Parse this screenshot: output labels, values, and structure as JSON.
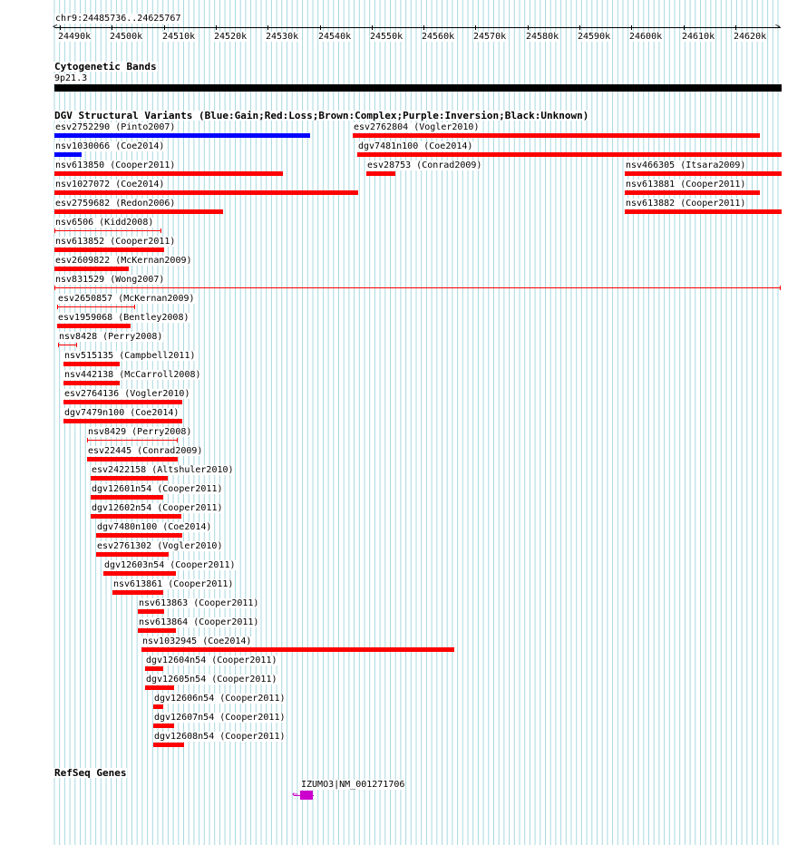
{
  "position": "chr9:24485736..24625767",
  "ruler": {
    "range_kb": [
      24485.736,
      24625.767
    ],
    "tick_labels": [
      "24490k",
      "24500k",
      "24510k",
      "24520k",
      "24530k",
      "24540k",
      "24550k",
      "24560k",
      "24570k",
      "24580k",
      "24590k",
      "24600k",
      "24610k",
      "24620k"
    ]
  },
  "cytoband": {
    "title": "Cytogenetic Bands",
    "band": "9p21.3"
  },
  "dgv": {
    "title": "DGV Structural Variants (Blue:Gain;Red:Loss;Brown:Complex;Purple:Inversion;Black:Unknown)",
    "colors": {
      "gain": "#0000ff",
      "loss": "#ff0000"
    },
    "variants": [
      {
        "label": "esv2752290 (Pinto2007)",
        "type": "gain",
        "style": "thick"
      },
      {
        "label": "esv2762804 (Vogler2010)",
        "type": "loss",
        "style": "thick"
      },
      {
        "label": "nsv1030066 (Coe2014)",
        "type": "gain",
        "style": "thick"
      },
      {
        "label": "dgv7481n100 (Coe2014)",
        "type": "loss",
        "style": "thick"
      },
      {
        "label": "nsv613850 (Cooper2011)",
        "type": "loss",
        "style": "thick"
      },
      {
        "label": "esv28753 (Conrad2009)",
        "type": "loss",
        "style": "thick"
      },
      {
        "label": "nsv466305 (Itsara2009)",
        "type": "loss",
        "style": "thick"
      },
      {
        "label": "nsv1027072 (Coe2014)",
        "type": "loss",
        "style": "thick"
      },
      {
        "label": "nsv613881 (Cooper2011)",
        "type": "loss",
        "style": "thick"
      },
      {
        "label": "esv2759682 (Redon2006)",
        "type": "loss",
        "style": "thick"
      },
      {
        "label": "nsv613882 (Cooper2011)",
        "type": "loss",
        "style": "thick"
      },
      {
        "label": "nsv6506 (Kidd2008)",
        "type": "loss",
        "style": "thin"
      },
      {
        "label": "nsv613852 (Cooper2011)",
        "type": "loss",
        "style": "thick"
      },
      {
        "label": "esv2609822 (McKernan2009)",
        "type": "loss",
        "style": "thick"
      },
      {
        "label": "nsv831529 (Wong2007)",
        "type": "loss",
        "style": "thin"
      },
      {
        "label": "esv2650857 (McKernan2009)",
        "type": "loss",
        "style": "thin"
      },
      {
        "label": "esv1959068 (Bentley2008)",
        "type": "loss",
        "style": "thick"
      },
      {
        "label": "nsv8428 (Perry2008)",
        "type": "loss",
        "style": "thin"
      },
      {
        "label": "nsv515135 (Campbell2011)",
        "type": "loss",
        "style": "thick"
      },
      {
        "label": "nsv442138 (McCarroll2008)",
        "type": "loss",
        "style": "thick"
      },
      {
        "label": "esv2764136 (Vogler2010)",
        "type": "loss",
        "style": "thick"
      },
      {
        "label": "dgv7479n100 (Coe2014)",
        "type": "loss",
        "style": "thick"
      },
      {
        "label": "nsv8429 (Perry2008)",
        "type": "loss",
        "style": "thin"
      },
      {
        "label": "esv22445 (Conrad2009)",
        "type": "loss",
        "style": "thick"
      },
      {
        "label": "esv2422158 (Altshuler2010)",
        "type": "loss",
        "style": "thick"
      },
      {
        "label": "dgv12601n54 (Cooper2011)",
        "type": "loss",
        "style": "thick"
      },
      {
        "label": "dgv12602n54 (Cooper2011)",
        "type": "loss",
        "style": "thick"
      },
      {
        "label": "dgv7480n100 (Coe2014)",
        "type": "loss",
        "style": "thick"
      },
      {
        "label": "esv2761302 (Vogler2010)",
        "type": "loss",
        "style": "thick"
      },
      {
        "label": "dgv12603n54 (Cooper2011)",
        "type": "loss",
        "style": "thick"
      },
      {
        "label": "nsv613861 (Cooper2011)",
        "type": "loss",
        "style": "thick"
      },
      {
        "label": "nsv613863 (Cooper2011)",
        "type": "loss",
        "style": "thick"
      },
      {
        "label": "nsv613864 (Cooper2011)",
        "type": "loss",
        "style": "thick"
      },
      {
        "label": "nsv1032945 (Coe2014)",
        "type": "loss",
        "style": "thick"
      },
      {
        "label": "dgv12604n54 (Cooper2011)",
        "type": "loss",
        "style": "thick"
      },
      {
        "label": "dgv12605n54 (Cooper2011)",
        "type": "loss",
        "style": "thick"
      },
      {
        "label": "dgv12606n54 (Cooper2011)",
        "type": "loss",
        "style": "thick"
      },
      {
        "label": "dgv12607n54 (Cooper2011)",
        "type": "loss",
        "style": "thick"
      },
      {
        "label": "dgv12608n54 (Cooper2011)",
        "type": "loss",
        "style": "thick"
      }
    ]
  },
  "refseq": {
    "title": "RefSeq Genes",
    "gene_label": "IZUMO3|NM_001271706",
    "color": "#cc00cc",
    "strand": "minus"
  }
}
